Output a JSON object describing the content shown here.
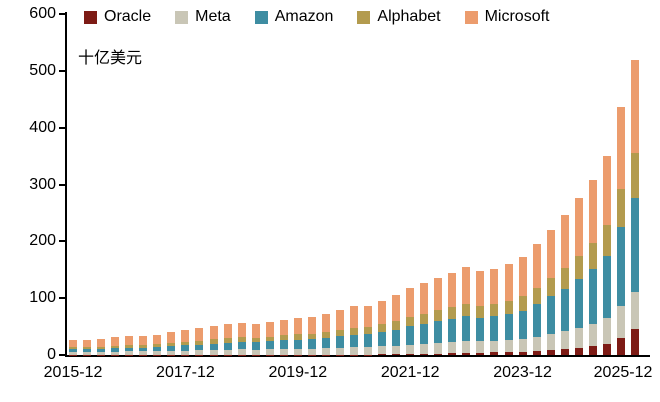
{
  "chart_data": {
    "type": "bar",
    "stacked": true,
    "title": "",
    "unit_label": "十亿美元",
    "legend_position": "top",
    "grid": false,
    "ylim": [
      0,
      600
    ],
    "yticks": [
      0,
      100,
      200,
      300,
      400,
      500,
      600
    ],
    "x": [
      "2015-12",
      "2016-03",
      "2016-06",
      "2016-09",
      "2016-12",
      "2017-03",
      "2017-06",
      "2017-09",
      "2017-12",
      "2018-03",
      "2018-06",
      "2018-09",
      "2018-12",
      "2019-03",
      "2019-06",
      "2019-09",
      "2019-12",
      "2020-03",
      "2020-06",
      "2020-09",
      "2020-12",
      "2021-03",
      "2021-06",
      "2021-09",
      "2021-12",
      "2022-03",
      "2022-06",
      "2022-09",
      "2022-12",
      "2023-03",
      "2023-06",
      "2023-09",
      "2023-12",
      "2024-03",
      "2024-06",
      "2024-09",
      "2024-12",
      "2025-03",
      "2025-06",
      "2025-09",
      "2025-12"
    ],
    "xtick_indices": [
      0,
      8,
      16,
      24,
      32,
      40
    ],
    "xtick_labels": [
      "2015-12",
      "2017-12",
      "2019-12",
      "2021-12",
      "2023-12",
      "2025-12"
    ],
    "series": [
      {
        "name": "Oracle",
        "color": "#7d1b15",
        "values": [
          0.3,
          0.3,
          0.3,
          0.3,
          0.3,
          0.3,
          0.4,
          0.4,
          0.4,
          0.5,
          0.5,
          0.5,
          0.5,
          0.5,
          0.5,
          0.6,
          0.6,
          0.6,
          0.7,
          0.7,
          0.8,
          0.9,
          1,
          1.2,
          1.5,
          2,
          2.5,
          3,
          3.5,
          4,
          4.5,
          5,
          6,
          7,
          9,
          11,
          13,
          16,
          20,
          30,
          45
        ]
      },
      {
        "name": "Meta",
        "color": "#c9c6b6",
        "values": [
          5,
          5,
          5,
          5.5,
          6,
          6,
          6.5,
          7,
          7.5,
          8,
          8.5,
          9,
          9.5,
          9,
          9.5,
          10,
          10.5,
          10.5,
          11,
          12,
          13,
          13,
          14,
          15,
          17,
          18,
          19,
          20,
          21,
          20,
          20,
          21,
          22,
          25,
          28,
          31,
          35,
          39,
          45,
          56,
          66
        ]
      },
      {
        "name": "Amazon",
        "color": "#3e8da2",
        "values": [
          5,
          5,
          5.5,
          6,
          6.5,
          6.5,
          7,
          8,
          9,
          10,
          11,
          12,
          13,
          13,
          14,
          15,
          16,
          17,
          18,
          20,
          22,
          23,
          25,
          28,
          32,
          35,
          38,
          41,
          44,
          42,
          44,
          46,
          50,
          58,
          66,
          75,
          85,
          96,
          110,
          140,
          165
        ]
      },
      {
        "name": "Alphabet",
        "color": "#b39b4e",
        "values": [
          4,
          4,
          4,
          4.5,
          5,
          5,
          5.5,
          6,
          6.5,
          7,
          7.5,
          8,
          8.5,
          8,
          8.5,
          9,
          9.5,
          9.5,
          10.5,
          11.5,
          12.5,
          12.5,
          14,
          15,
          17,
          18,
          19,
          21,
          22,
          21,
          22,
          23,
          25,
          28,
          32,
          36,
          41,
          46,
          53,
          67,
          80
        ]
      },
      {
        "name": "Microsoft",
        "color": "#ec9c6d",
        "values": [
          12.7,
          11.7,
          13.2,
          14.7,
          16.2,
          15.2,
          16.6,
          18.6,
          20.6,
          22.5,
          23.5,
          24.5,
          25.5,
          24.5,
          25.5,
          27.4,
          29.4,
          29.4,
          31.8,
          34.8,
          37.7,
          37.6,
          41,
          45.8,
          50.5,
          53,
          56.5,
          60,
          64.5,
          61,
          61.5,
          65,
          69,
          78,
          85,
          93,
          102,
          111,
          122,
          144,
          164
        ]
      }
    ]
  }
}
